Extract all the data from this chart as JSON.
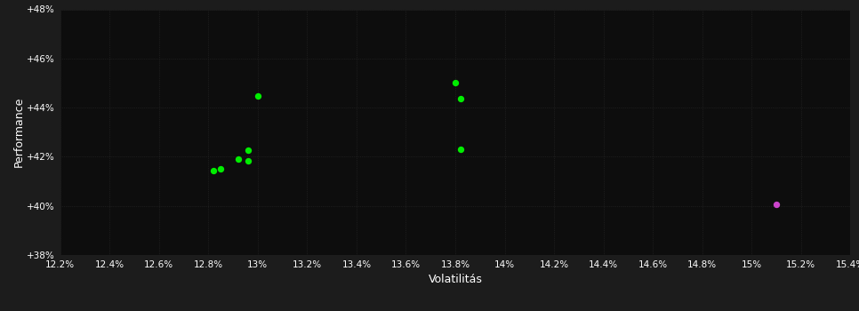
{
  "background_color": "#1c1c1c",
  "plot_bg_color": "#0d0d0d",
  "text_color": "#ffffff",
  "xlabel": "Volatilitás",
  "ylabel": "Performance",
  "xlim": [
    0.122,
    0.154
  ],
  "ylim": [
    0.38,
    0.48
  ],
  "xticks": [
    0.122,
    0.124,
    0.126,
    0.128,
    0.13,
    0.132,
    0.134,
    0.136,
    0.138,
    0.14,
    0.142,
    0.144,
    0.146,
    0.148,
    0.15,
    0.152,
    0.154
  ],
  "yticks": [
    0.38,
    0.4,
    0.42,
    0.44,
    0.46,
    0.48
  ],
  "xtick_labels": [
    "12.2%",
    "12.4%",
    "12.6%",
    "12.8%",
    "13%",
    "13.2%",
    "13.4%",
    "13.6%",
    "13.8%",
    "14%",
    "14.2%",
    "14.4%",
    "14.6%",
    "14.8%",
    "15%",
    "15.2%",
    "15.4%"
  ],
  "ytick_labels": [
    "+38%",
    "+40%",
    "+42%",
    "+44%",
    "+46%",
    "+48%"
  ],
  "green_points": [
    [
      0.1282,
      0.4143
    ],
    [
      0.1285,
      0.4152
    ],
    [
      0.1292,
      0.4192
    ],
    [
      0.1296,
      0.4182
    ],
    [
      0.1296,
      0.4225
    ],
    [
      0.13,
      0.4447
    ],
    [
      0.138,
      0.45
    ],
    [
      0.1382,
      0.4435
    ],
    [
      0.1382,
      0.423
    ]
  ],
  "magenta_points": [
    [
      0.151,
      0.4005
    ]
  ],
  "green_color": "#00ee00",
  "magenta_color": "#cc44cc",
  "marker_size": 28
}
